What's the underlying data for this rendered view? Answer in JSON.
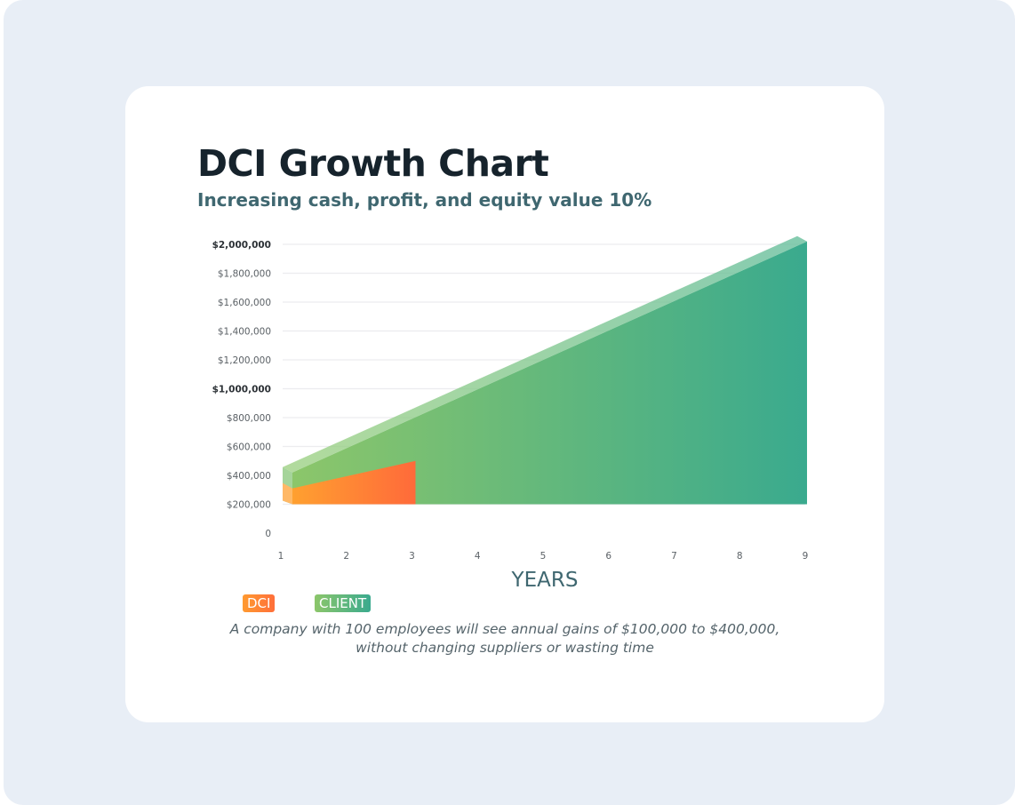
{
  "chart_data": {
    "type": "area",
    "title": "DCI Growth Chart",
    "subtitle": "Increasing cash, profit, and equity value 10%",
    "xlabel": "YEARS",
    "ylabel": "",
    "x": [
      1,
      2,
      3,
      4,
      5,
      6,
      7,
      8,
      9
    ],
    "xtick_labels": [
      "1",
      "2",
      "3",
      "4",
      "5",
      "6",
      "7",
      "8",
      "9"
    ],
    "ylim": [
      0,
      2000000
    ],
    "ytick_values": [
      0,
      200000,
      400000,
      600000,
      800000,
      1000000,
      1200000,
      1400000,
      1600000,
      1800000,
      2000000
    ],
    "ytick_labels": [
      "0",
      "$200,000",
      "$400,000",
      "$600,000",
      "$800,000",
      "$1,000,000",
      "$1,200,000",
      "$1,400,000",
      "$1,600,000",
      "$1,800,000",
      "$2,000,000"
    ],
    "baseline": 200000,
    "grid": true,
    "series": [
      {
        "name": "CLIENT",
        "x": [
          1,
          9
        ],
        "values": [
          420000,
          2020000
        ],
        "color_start": "#8cc66a",
        "color_end": "#3aaa8e"
      },
      {
        "name": "DCI",
        "x": [
          1,
          3
        ],
        "values": [
          310000,
          500000
        ],
        "color_start": "#ffa030",
        "color_end": "#ff6a3a"
      }
    ],
    "legend": {
      "placement": "bottom-left",
      "items": [
        "DCI",
        "CLIENT"
      ]
    },
    "annotation": "A company with 100 employees will see annual gains of $100,000 to $400,000,",
    "annotation_line2": "without changing suppliers or wasting time"
  }
}
